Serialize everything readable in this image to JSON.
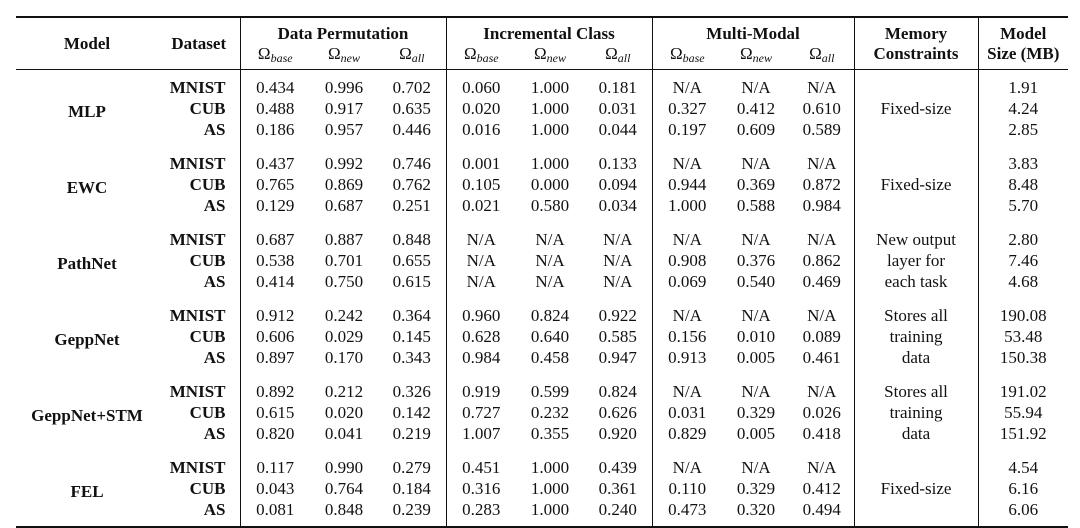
{
  "headers": {
    "model": "Model",
    "dataset": "Dataset",
    "groups": [
      "Data Permutation",
      "Incremental Class",
      "Multi-Modal"
    ],
    "memory": [
      "Memory",
      "Constraints"
    ],
    "size": [
      "Model",
      "Size (MB)"
    ],
    "omega_symbol": "Ω",
    "metrics": [
      "base",
      "new",
      "all"
    ]
  },
  "rows": [
    {
      "model": "MLP",
      "memory": [
        "",
        "Fixed-size",
        ""
      ],
      "data": [
        {
          "dataset": "MNIST",
          "dp": [
            "0.434",
            "0.996",
            "0.702"
          ],
          "ic": [
            "0.060",
            "1.000",
            "0.181"
          ],
          "mm": [
            "N/A",
            "N/A",
            "N/A"
          ],
          "size": "1.91"
        },
        {
          "dataset": "CUB",
          "dp": [
            "0.488",
            "0.917",
            "0.635"
          ],
          "ic": [
            "0.020",
            "1.000",
            "0.031"
          ],
          "mm": [
            "0.327",
            "0.412",
            "0.610"
          ],
          "size": "4.24"
        },
        {
          "dataset": "AS",
          "dp": [
            "0.186",
            "0.957",
            "0.446"
          ],
          "ic": [
            "0.016",
            "1.000",
            "0.044"
          ],
          "mm": [
            "0.197",
            "0.609",
            "0.589"
          ],
          "size": "2.85"
        }
      ]
    },
    {
      "model": "EWC",
      "memory": [
        "",
        "Fixed-size",
        ""
      ],
      "data": [
        {
          "dataset": "MNIST",
          "dp": [
            "0.437",
            "0.992",
            "0.746"
          ],
          "ic": [
            "0.001",
            "1.000",
            "0.133"
          ],
          "mm": [
            "N/A",
            "N/A",
            "N/A"
          ],
          "size": "3.83"
        },
        {
          "dataset": "CUB",
          "dp": [
            "0.765",
            "0.869",
            "0.762"
          ],
          "ic": [
            "0.105",
            "0.000",
            "0.094"
          ],
          "mm": [
            "0.944",
            "0.369",
            "0.872"
          ],
          "size": "8.48"
        },
        {
          "dataset": "AS",
          "dp": [
            "0.129",
            "0.687",
            "0.251"
          ],
          "ic": [
            "0.021",
            "0.580",
            "0.034"
          ],
          "mm": [
            "1.000",
            "0.588",
            "0.984"
          ],
          "size": "5.70"
        }
      ]
    },
    {
      "model": "PathNet",
      "memory": [
        "New output",
        "layer for",
        "each task"
      ],
      "data": [
        {
          "dataset": "MNIST",
          "dp": [
            "0.687",
            "0.887",
            "0.848"
          ],
          "ic": [
            "N/A",
            "N/A",
            "N/A"
          ],
          "mm": [
            "N/A",
            "N/A",
            "N/A"
          ],
          "size": "2.80"
        },
        {
          "dataset": "CUB",
          "dp": [
            "0.538",
            "0.701",
            "0.655"
          ],
          "ic": [
            "N/A",
            "N/A",
            "N/A"
          ],
          "mm": [
            "0.908",
            "0.376",
            "0.862"
          ],
          "size": "7.46"
        },
        {
          "dataset": "AS",
          "dp": [
            "0.414",
            "0.750",
            "0.615"
          ],
          "ic": [
            "N/A",
            "N/A",
            "N/A"
          ],
          "mm": [
            "0.069",
            "0.540",
            "0.469"
          ],
          "size": "4.68"
        }
      ]
    },
    {
      "model": "GeppNet",
      "memory": [
        "Stores all",
        "training",
        "data"
      ],
      "data": [
        {
          "dataset": "MNIST",
          "dp": [
            "0.912",
            "0.242",
            "0.364"
          ],
          "ic": [
            "0.960",
            "0.824",
            "0.922"
          ],
          "mm": [
            "N/A",
            "N/A",
            "N/A"
          ],
          "size": "190.08"
        },
        {
          "dataset": "CUB",
          "dp": [
            "0.606",
            "0.029",
            "0.145"
          ],
          "ic": [
            "0.628",
            "0.640",
            "0.585"
          ],
          "mm": [
            "0.156",
            "0.010",
            "0.089"
          ],
          "size": "53.48"
        },
        {
          "dataset": "AS",
          "dp": [
            "0.897",
            "0.170",
            "0.343"
          ],
          "ic": [
            "0.984",
            "0.458",
            "0.947"
          ],
          "mm": [
            "0.913",
            "0.005",
            "0.461"
          ],
          "size": "150.38"
        }
      ]
    },
    {
      "model": "GeppNet+STM",
      "memory": [
        "Stores all",
        "training",
        "data"
      ],
      "data": [
        {
          "dataset": "MNIST",
          "dp": [
            "0.892",
            "0.212",
            "0.326"
          ],
          "ic": [
            "0.919",
            "0.599",
            "0.824"
          ],
          "mm": [
            "N/A",
            "N/A",
            "N/A"
          ],
          "size": "191.02"
        },
        {
          "dataset": "CUB",
          "dp": [
            "0.615",
            "0.020",
            "0.142"
          ],
          "ic": [
            "0.727",
            "0.232",
            "0.626"
          ],
          "mm": [
            "0.031",
            "0.329",
            "0.026"
          ],
          "size": "55.94"
        },
        {
          "dataset": "AS",
          "dp": [
            "0.820",
            "0.041",
            "0.219"
          ],
          "ic": [
            "1.007",
            "0.355",
            "0.920"
          ],
          "mm": [
            "0.829",
            "0.005",
            "0.418"
          ],
          "size": "151.92"
        }
      ]
    },
    {
      "model": "FEL",
      "memory": [
        "",
        "Fixed-size",
        ""
      ],
      "data": [
        {
          "dataset": "MNIST",
          "dp": [
            "0.117",
            "0.990",
            "0.279"
          ],
          "ic": [
            "0.451",
            "1.000",
            "0.439"
          ],
          "mm": [
            "N/A",
            "N/A",
            "N/A"
          ],
          "size": "4.54"
        },
        {
          "dataset": "CUB",
          "dp": [
            "0.043",
            "0.764",
            "0.184"
          ],
          "ic": [
            "0.316",
            "1.000",
            "0.361"
          ],
          "mm": [
            "0.110",
            "0.329",
            "0.412"
          ],
          "size": "6.16"
        },
        {
          "dataset": "AS",
          "dp": [
            "0.081",
            "0.848",
            "0.239"
          ],
          "ic": [
            "0.283",
            "1.000",
            "0.240"
          ],
          "mm": [
            "0.473",
            "0.320",
            "0.494"
          ],
          "size": "6.06"
        }
      ]
    }
  ]
}
